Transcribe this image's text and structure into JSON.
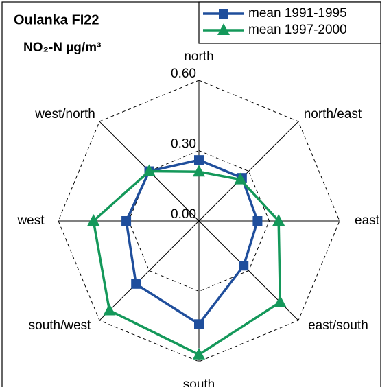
{
  "chart_data": {
    "type": "radar",
    "title": "Oulanka FI22",
    "subtitle": "NO₂-N µg/m³",
    "categories": [
      "north",
      "north/east",
      "east",
      "east/south",
      "south",
      "south/west",
      "west",
      "west/north"
    ],
    "series": [
      {
        "name": "mean 1991-1995",
        "color": "#1f4e9c",
        "marker": "square",
        "values": [
          0.26,
          0.26,
          0.25,
          0.27,
          0.44,
          0.38,
          0.31,
          0.3
        ]
      },
      {
        "name": "mean 1997-2000",
        "color": "#14985a",
        "marker": "triangle",
        "values": [
          0.21,
          0.25,
          0.34,
          0.49,
          0.57,
          0.54,
          0.45,
          0.3
        ]
      }
    ],
    "ylim": [
      0,
      0.6
    ],
    "yticks": [
      {
        "value": 0,
        "label": "0.00"
      },
      {
        "value": 0.3,
        "label": "0.30"
      },
      {
        "value": 0.6,
        "label": "0.60"
      }
    ],
    "grid": true,
    "legend": "top-right"
  }
}
